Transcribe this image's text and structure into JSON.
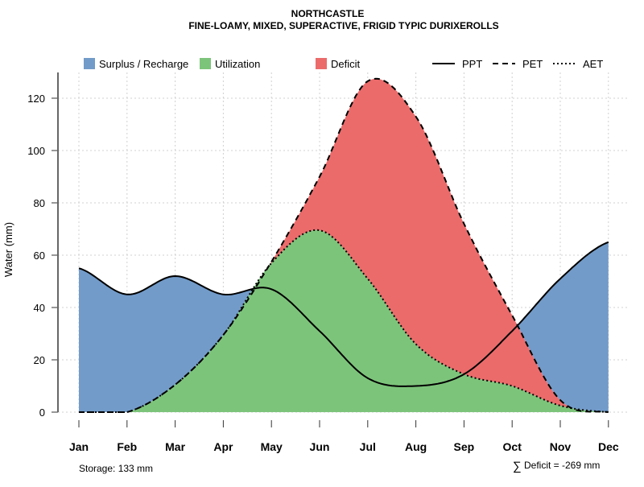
{
  "chart_data": {
    "type": "area",
    "title": "NORTHCASTLE",
    "subtitle": "FINE-LOAMY, MIXED, SUPERACTIVE, FRIGID TYPIC DURIXEROLLS",
    "xlabel": "",
    "ylabel": "Water (mm)",
    "ylim": [
      0,
      130
    ],
    "yticks": [
      0,
      20,
      40,
      60,
      80,
      100,
      120
    ],
    "categories": [
      "Jan",
      "Feb",
      "Mar",
      "Apr",
      "May",
      "Jun",
      "Jul",
      "Aug",
      "Sep",
      "Oct",
      "Nov",
      "Dec"
    ],
    "series": [
      {
        "name": "PPT",
        "style": "solid",
        "values": [
          55,
          45,
          52,
          45,
          47,
          31,
          13,
          10,
          14.5,
          31,
          51,
          65
        ]
      },
      {
        "name": "PET",
        "style": "dashed",
        "values": [
          0,
          0,
          10.5,
          29.5,
          57.5,
          90,
          126.5,
          113,
          72,
          37,
          4.6,
          0
        ]
      },
      {
        "name": "AET",
        "style": "dotted",
        "values": [
          0,
          0,
          10.5,
          29.5,
          57,
          69.5,
          51,
          26,
          14.5,
          10,
          2.5,
          0
        ]
      }
    ],
    "fills": [
      {
        "name": "Surplus / Recharge",
        "color": "#729bc9"
      },
      {
        "name": "Utilization",
        "color": "#7dc47b"
      },
      {
        "name": "Deficit",
        "color": "#eb6b6b"
      }
    ],
    "grid": true,
    "legend": "top",
    "annotations": {
      "storage": "Storage: 133 mm",
      "deficit_symbol": "∑",
      "deficit": "Deficit = -269 mm"
    }
  }
}
